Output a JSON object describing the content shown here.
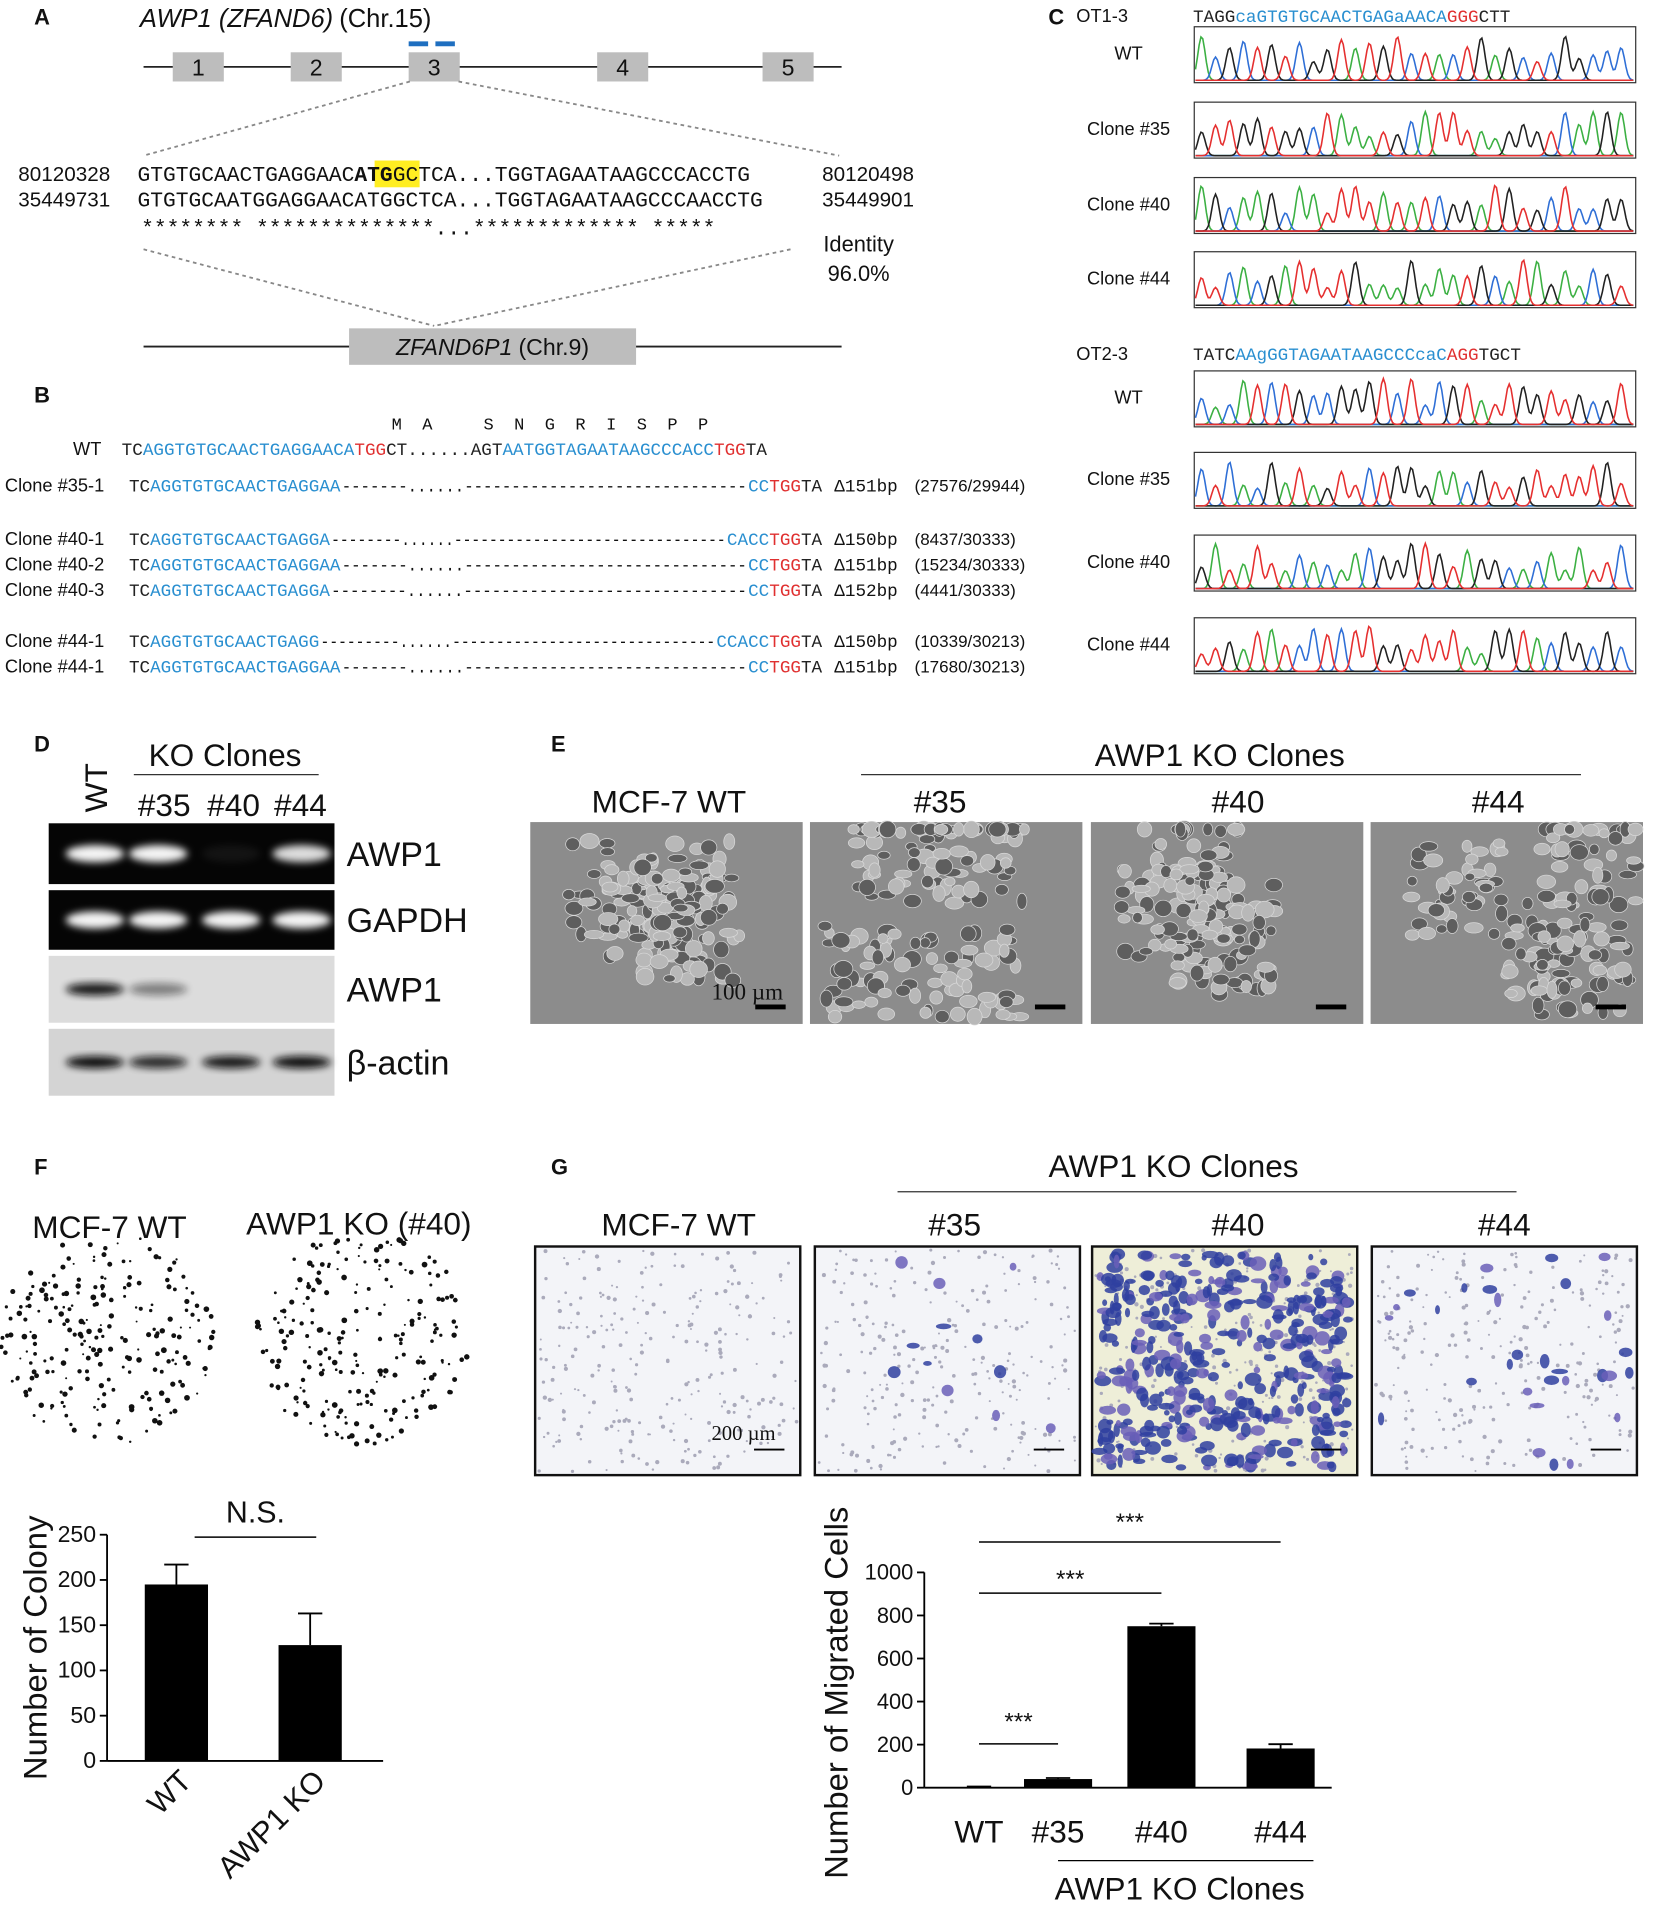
{
  "panels": {
    "A": {
      "label": "A",
      "gene": "AWP1 (ZFAND6)",
      "chr": "(Chr.15)",
      "exons": [
        "1",
        "2",
        "3",
        "4",
        "5"
      ],
      "seq1": {
        "start": "80120328",
        "parts": [
          "GTGTGCAACTGAGGAAC",
          "ATG",
          "GCTCA...TGGTAGAATAAGCCCACCTG"
        ],
        "end": "80120498"
      },
      "seq2": {
        "start": "35449731",
        "text": "GTGTGCAATGGAGGAACATGGCTCA...TGGTAGAATAAGCCCAACCTG",
        "end": "35449901"
      },
      "stars": "********  **************...*************  *****",
      "identity": "Identity",
      "identity_value": "96.0%",
      "pseudogene": "ZFAND6P1",
      "pseudogene_chr": "(Chr.9)"
    },
    "B": {
      "label": "B",
      "aa": "M  A     S  N  G  R  I  S  P  P",
      "wt": {
        "label": "WT",
        "parts": [
          "TC",
          "AGGTGTGCAACTGAGGAACA",
          "TGG",
          "CT......AGT",
          "AATGGTAGAATAAGCCCACC",
          "TGG",
          "TA"
        ],
        "colors": [
          "#222",
          "#2a8fd0",
          "#e03030",
          "#222",
          "#2a8fd0",
          "#e03030",
          "#222"
        ]
      },
      "rows": [
        {
          "label": "Clone #35-1",
          "left": [
            "TC",
            "AGGTGTGCAACTGAGGAA"
          ],
          "gap": "-------......------------------------------",
          "right": [
            "CC",
            "TGG",
            "TA"
          ],
          "deletion": "Δ151bp",
          "reads": "(27576/29944)"
        },
        {
          "label": "Clone #40-1",
          "left": [
            "TC",
            "AGGTGTGCAACTGAGGA"
          ],
          "gap": "--------......-------------------------------",
          "right": [
            "CACC",
            "TGG",
            "TA"
          ],
          "deletion": "Δ150bp",
          "reads": "(8437/30333)"
        },
        {
          "label": "Clone #40-2",
          "left": [
            "TC",
            "AGGTGTGCAACTGAGGAA"
          ],
          "gap": "-------......------------------------------",
          "right": [
            "CC",
            "TGG",
            "TA"
          ],
          "deletion": "Δ151bp",
          "reads": "(15234/30333)"
        },
        {
          "label": "Clone #40-3",
          "left": [
            "TC",
            "AGGTGTGCAACTGAGGA"
          ],
          "gap": "--------......------------------------------",
          "right": [
            "CC",
            "TGG",
            "TA"
          ],
          "deletion": "Δ152bp",
          "reads": "(4441/30333)"
        },
        {
          "label": "Clone #44-1",
          "left": [
            "TC",
            "AGGTGTGCAACTGAGG"
          ],
          "gap": "---------......------------------------------",
          "right": [
            "CCACC",
            "TGG",
            "TA"
          ],
          "deletion": "Δ150bp",
          "reads": "(10339/30213)"
        },
        {
          "label": "Clone #44-1",
          "left": [
            "TC",
            "AGGTGTGCAACTGAGGAA"
          ],
          "gap": "-------......------------------------------",
          "right": [
            "CC",
            "TGG",
            "TA"
          ],
          "deletion": "Δ151bp",
          "reads": "(17680/30213)"
        }
      ],
      "left_colors": [
        "#222",
        "#2a8fd0"
      ],
      "right_colors": [
        "#2a8fd0",
        "#e03030",
        "#222"
      ]
    },
    "C": {
      "label": "C",
      "sites": [
        {
          "name": "OT1-3",
          "parts": [
            "TAGG",
            "caGTGTGCAACTGAGaAACA",
            "GGG",
            "CTT"
          ],
          "samples": [
            "WT",
            "Clone #35",
            "Clone #40",
            "Clone #44"
          ]
        },
        {
          "name": "OT2-3",
          "parts": [
            "TATC",
            "AAgGGTAGAATAAGCCCcaC",
            "AGG",
            "TGCT"
          ],
          "samples": [
            "WT",
            "Clone #35",
            "Clone #40",
            "Clone #44"
          ]
        }
      ],
      "colors": [
        "#222",
        "#2a8fd0",
        "#e03030",
        "#222"
      ]
    },
    "D": {
      "label": "D",
      "wt": "WT",
      "group": "KO Clones",
      "clones": [
        "#35",
        "#40",
        "#44"
      ],
      "rows": [
        "AWP1",
        "GAPDH",
        "AWP1",
        "β-actin"
      ]
    },
    "E": {
      "label": "E",
      "group": "AWP1 KO Clones",
      "columns": [
        "MCF-7 WT",
        "#35",
        "#40",
        "#44"
      ],
      "scale": "100 µm"
    },
    "F": {
      "label": "F",
      "columns": [
        "MCF-7 WT",
        "AWP1 KO (#40)"
      ]
    },
    "G": {
      "label": "G",
      "group": "AWP1 KO Clones",
      "columns": [
        "MCF-7 WT",
        "#35",
        "#40",
        "#44"
      ],
      "scale": "200 µm"
    }
  },
  "chart_data": [
    {
      "type": "bar",
      "categories": [
        "WT",
        "AWP1 KO"
      ],
      "values": [
        195,
        128
      ],
      "errors": [
        22,
        35
      ],
      "color": "#000",
      "ylabel": "Number of Colony",
      "ylim": [
        0,
        250
      ],
      "yticks": [
        0,
        50,
        100,
        150,
        200,
        250
      ],
      "annotations": [
        "N.S."
      ]
    },
    {
      "type": "bar",
      "categories": [
        "WT",
        "#35",
        "#40",
        "#44"
      ],
      "values": [
        3,
        40,
        750,
        182
      ],
      "errors": [
        2,
        5,
        12,
        20
      ],
      "color": "#000",
      "ylabel": "Number of Migrated Cells",
      "xlabel": "AWP1 KO Clones",
      "ylim": [
        0,
        1000
      ],
      "yticks": [
        0,
        200,
        400,
        600,
        800,
        1000
      ],
      "annotations": [
        "***",
        "***",
        "***"
      ]
    }
  ]
}
